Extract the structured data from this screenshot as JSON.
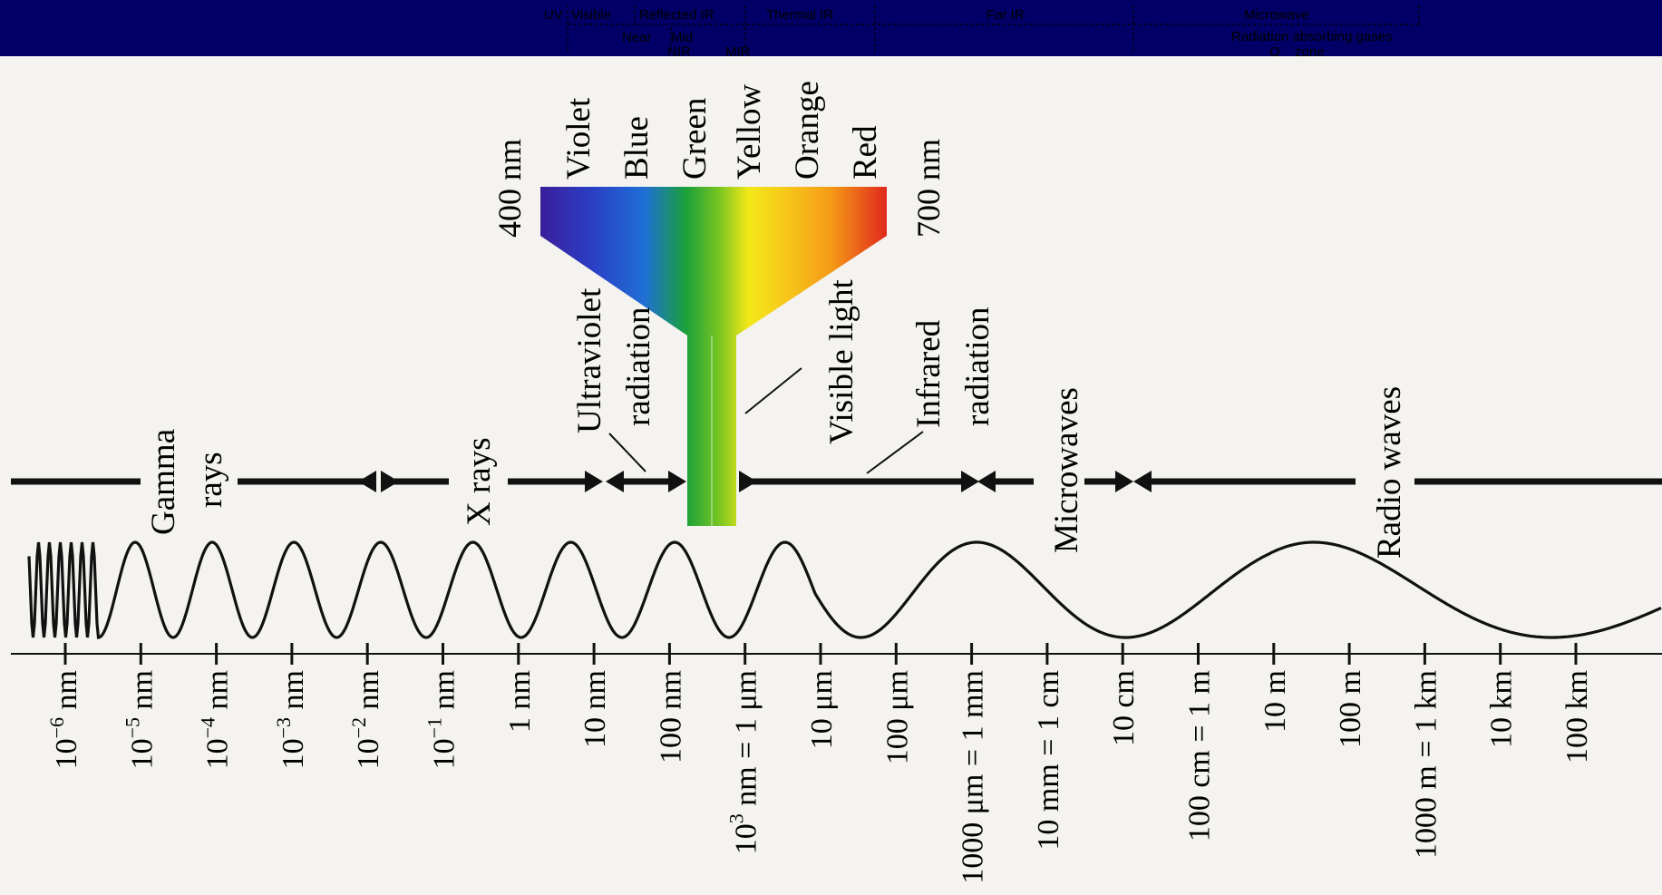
{
  "bands_bar": {
    "background": "#020066",
    "row1": [
      "UV",
      "Visible",
      "Reflected IR",
      "Thermal IR",
      "Far IR",
      "Microwave"
    ],
    "row2": [
      "Near",
      "Mid",
      "Radiation absorbing gases"
    ],
    "row3": [
      "NIR",
      "MIR",
      "O",
      "zone"
    ]
  },
  "regions": [
    "Gamma",
    "rays",
    "X rays",
    "Ultraviolet",
    "radiation",
    "Visible light",
    "Infrared",
    "radiation",
    "Microwaves",
    "Radio waves"
  ],
  "spectrum": {
    "colors": [
      "Violet",
      "Blue",
      "Green",
      "Yellow",
      "Orange",
      "Red"
    ],
    "left_nm": "400 nm",
    "right_nm": "700 nm",
    "swatches": [
      "#3a1e9a",
      "#1f4fd0",
      "#1aa03a",
      "#f3e818",
      "#f59a16",
      "#e0281e"
    ]
  },
  "axis_labels": [
    {
      "base": "10",
      "exp": "−6",
      "unit": " nm"
    },
    {
      "base": "10",
      "exp": "−5",
      "unit": " nm"
    },
    {
      "base": "10",
      "exp": "−4",
      "unit": " nm"
    },
    {
      "base": "10",
      "exp": "−3",
      "unit": " nm"
    },
    {
      "base": "10",
      "exp": "−2",
      "unit": " nm"
    },
    {
      "base": "10",
      "exp": "−1",
      "unit": " nm"
    },
    {
      "base": "1 nm",
      "exp": "",
      "unit": ""
    },
    {
      "base": "10 nm",
      "exp": "",
      "unit": ""
    },
    {
      "base": "100 nm",
      "exp": "",
      "unit": ""
    },
    {
      "base": "10",
      "exp": "3",
      "unit": " nm = 1 μm"
    },
    {
      "base": "10 μm",
      "exp": "",
      "unit": ""
    },
    {
      "base": "100 μm",
      "exp": "",
      "unit": ""
    },
    {
      "base": "1000 μm = 1 mm",
      "exp": "",
      "unit": ""
    },
    {
      "base": "10 mm = 1 cm",
      "exp": "",
      "unit": ""
    },
    {
      "base": "10 cm",
      "exp": "",
      "unit": ""
    },
    {
      "base": "100 cm = 1 m",
      "exp": "",
      "unit": ""
    },
    {
      "base": "10 m",
      "exp": "",
      "unit": ""
    },
    {
      "base": "100 m",
      "exp": "",
      "unit": ""
    },
    {
      "base": "1000 m = 1 km",
      "exp": "",
      "unit": ""
    },
    {
      "base": "10 km",
      "exp": "",
      "unit": ""
    },
    {
      "base": "100 km",
      "exp": "",
      "unit": ""
    }
  ]
}
